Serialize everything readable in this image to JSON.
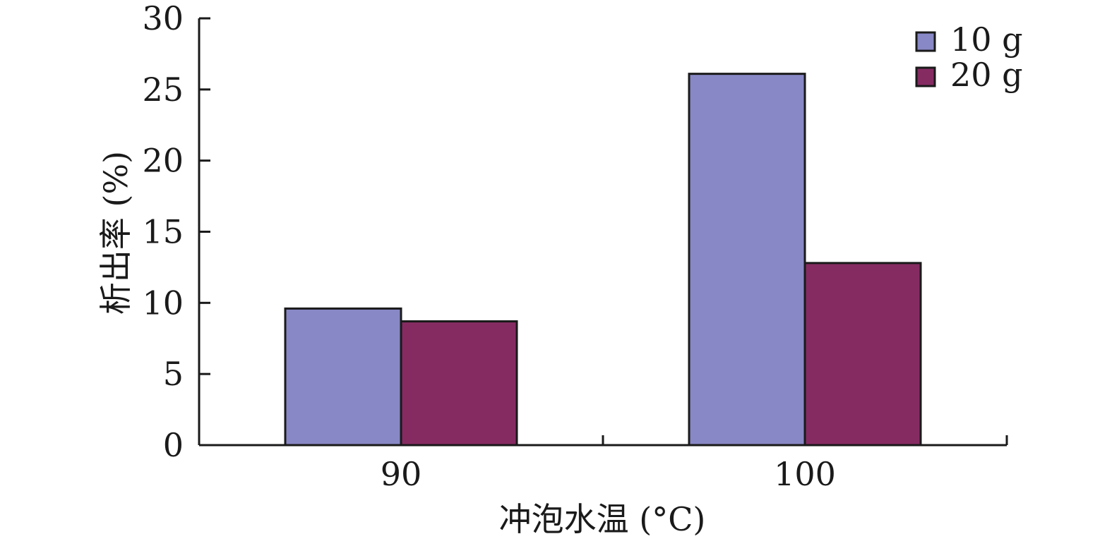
{
  "chart_data": {
    "type": "bar",
    "categories": [
      "90",
      "100"
    ],
    "series": [
      {
        "name": "10 g",
        "values": [
          9.6,
          26.1
        ],
        "color": "#8888c6"
      },
      {
        "name": "20 g",
        "values": [
          8.7,
          12.8
        ],
        "color": "#862b62"
      }
    ],
    "xlabel": "冲泡水温 (°C)",
    "ylabel": "析出率 (%)",
    "ylim": [
      0,
      30
    ],
    "yticks": [
      "0",
      "5",
      "10",
      "15",
      "20",
      "25",
      "30"
    ],
    "grid": false,
    "legend_position": "top-right"
  }
}
